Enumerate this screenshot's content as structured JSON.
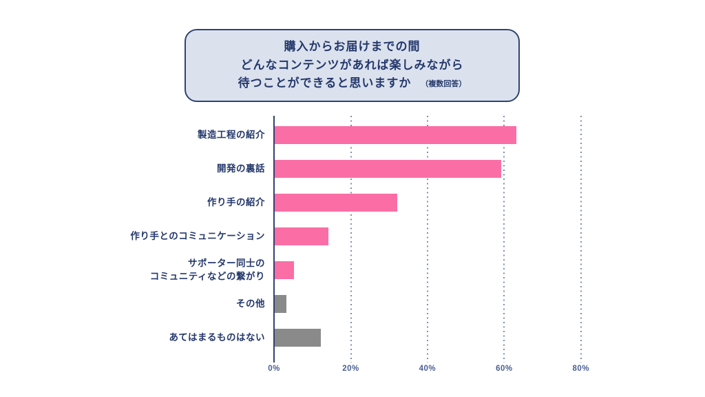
{
  "title": {
    "line1": "購入からお届けまでの間",
    "line2": "どんなコンテンツがあれば楽しみながら",
    "line3": "待つことができると思いますか",
    "note": "（複数回答）"
  },
  "chart_data": {
    "type": "bar",
    "orientation": "horizontal",
    "title": "購入からお届けまでの間 どんなコンテンツがあれば楽しみながら 待つことができると思いますか（複数回答）",
    "categories": [
      "製造工程の紹介",
      "開発の裏話",
      "作り手の紹介",
      "作り手とのコミュニケーション",
      "サポーター同士の\nコミュニティなどの繋がり",
      "その他",
      "あてはまるものはない"
    ],
    "values": [
      63,
      59,
      32,
      14,
      5,
      3,
      12
    ],
    "unit": "%",
    "xlabel": "",
    "ylabel": "",
    "xlim": [
      0,
      100
    ],
    "x_ticks": [
      "0%",
      "20%",
      "40%",
      "60%",
      "80%"
    ],
    "x_tick_values": [
      0,
      20,
      40,
      60,
      80
    ],
    "grid": "dotted-vertical-at-20-40-60-80",
    "legend": "none",
    "bar_colors": [
      "#fa6ea5",
      "#fa6ea5",
      "#fa6ea5",
      "#fa6ea5",
      "#fa6ea5",
      "#8a8a8a",
      "#8a8a8a"
    ]
  },
  "colors": {
    "background": "#ffffff",
    "bar_pink": "#fa6ea5",
    "bar_gray": "#8a8a8a",
    "text_navy": "#24386b",
    "axis_navy": "#2f4370",
    "grid_dot": "#7b8db4",
    "tick_label": "#4a5e94",
    "title_box_bg": "#dbe2ee",
    "title_box_border": "#2f4370"
  }
}
